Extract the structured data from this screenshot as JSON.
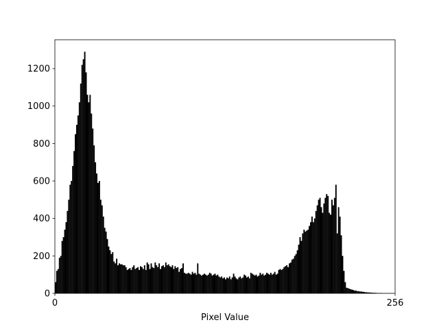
{
  "chart_data": {
    "type": "histogram",
    "xlabel": "Pixel Value",
    "color": "#000000",
    "bins": [
      0,
      1,
      2,
      3,
      4,
      5,
      6,
      7,
      8,
      9,
      10,
      11,
      12,
      13,
      14,
      15,
      16,
      17,
      18,
      19,
      20,
      21,
      22,
      23,
      24,
      25,
      26,
      27,
      28,
      29,
      30,
      31,
      32,
      33,
      34,
      35,
      36,
      37,
      38,
      39,
      40,
      41,
      42,
      43,
      44,
      45,
      46,
      47,
      48,
      49,
      50,
      51,
      52,
      53,
      54,
      55,
      56,
      57,
      58,
      59,
      60,
      61,
      62,
      63,
      64,
      65,
      66,
      67,
      68,
      69,
      70,
      71,
      72,
      73,
      74,
      75,
      76,
      77,
      78,
      79,
      80,
      81,
      82,
      83,
      84,
      85,
      86,
      87,
      88,
      89,
      90,
      91,
      92,
      93,
      94,
      95,
      96,
      97,
      98,
      99,
      100,
      101,
      102,
      103,
      104,
      105,
      106,
      107,
      108,
      109,
      110,
      111,
      112,
      113,
      114,
      115,
      116,
      117,
      118,
      119,
      120,
      121,
      122,
      123,
      124,
      125,
      126,
      127,
      128,
      129,
      130,
      131,
      132,
      133,
      134,
      135,
      136,
      137,
      138,
      139,
      140,
      141,
      142,
      143,
      144,
      145,
      146,
      147,
      148,
      149,
      150,
      151,
      152,
      153,
      154,
      155,
      156,
      157,
      158,
      159,
      160,
      161,
      162,
      163,
      164,
      165,
      166,
      167,
      168,
      169,
      170,
      171,
      172,
      173,
      174,
      175,
      176,
      177,
      178,
      179,
      180,
      181,
      182,
      183,
      184,
      185,
      186,
      187,
      188,
      189,
      190,
      191,
      192,
      193,
      194,
      195,
      196,
      197,
      198,
      199,
      200,
      201,
      202,
      203,
      204,
      205,
      206,
      207,
      208,
      209,
      210,
      211,
      212,
      213,
      214,
      215,
      216,
      217,
      218,
      219,
      220,
      221,
      222,
      223,
      224,
      225,
      226,
      227,
      228,
      229,
      230,
      231,
      232,
      233,
      234,
      235,
      236,
      237,
      238,
      239,
      240,
      241,
      242,
      243,
      244,
      245,
      246,
      247,
      248,
      249,
      250,
      251,
      252,
      253,
      254,
      255,
      256
    ],
    "values": [
      60,
      120,
      130,
      190,
      200,
      280,
      300,
      340,
      380,
      440,
      500,
      580,
      600,
      680,
      760,
      850,
      900,
      950,
      1020,
      1120,
      1220,
      1250,
      1290,
      1180,
      1060,
      1020,
      1060,
      960,
      880,
      790,
      700,
      640,
      590,
      600,
      500,
      470,
      410,
      350,
      330,
      290,
      250,
      230,
      210,
      220,
      170,
      160,
      185,
      150,
      160,
      155,
      155,
      150,
      150,
      140,
      125,
      130,
      135,
      125,
      140,
      150,
      130,
      135,
      140,
      125,
      145,
      140,
      130,
      150,
      125,
      165,
      155,
      130,
      160,
      140,
      135,
      165,
      150,
      140,
      160,
      130,
      145,
      150,
      140,
      165,
      150,
      155,
      145,
      140,
      150,
      130,
      145,
      135,
      140,
      115,
      130,
      135,
      160,
      110,
      105,
      105,
      110,
      105,
      100,
      115,
      105,
      110,
      100,
      160,
      105,
      100,
      95,
      100,
      105,
      100,
      95,
      100,
      110,
      105,
      95,
      100,
      105,
      95,
      100,
      90,
      85,
      90,
      80,
      85,
      75,
      85,
      80,
      90,
      75,
      85,
      105,
      90,
      80,
      75,
      85,
      90,
      80,
      85,
      100,
      95,
      85,
      90,
      80,
      110,
      105,
      100,
      95,
      100,
      90,
      95,
      110,
      100,
      105,
      95,
      100,
      110,
      105,
      100,
      110,
      100,
      105,
      115,
      100,
      105,
      125,
      130,
      125,
      130,
      140,
      145,
      150,
      140,
      160,
      165,
      180,
      185,
      200,
      210,
      230,
      260,
      300,
      280,
      320,
      340,
      330,
      335,
      340,
      360,
      380,
      410,
      380,
      400,
      440,
      470,
      500,
      510,
      460,
      430,
      480,
      510,
      530,
      520,
      430,
      420,
      500,
      470,
      510,
      580,
      320,
      460,
      410,
      310,
      200,
      120,
      60,
      30,
      28,
      25,
      22,
      20,
      18,
      15,
      15,
      12,
      12,
      10,
      10,
      8,
      8,
      6,
      6,
      5,
      5,
      4,
      4,
      3,
      3,
      3,
      2,
      2,
      2,
      2,
      1,
      1,
      1,
      1,
      1,
      1,
      1,
      0,
      0,
      0
    ],
    "xlim": [
      0,
      256
    ],
    "xticks": [
      0,
      256
    ],
    "ylim": [
      0,
      1354
    ],
    "yticks": [
      0,
      200,
      400,
      600,
      800,
      1000,
      1200
    ]
  }
}
